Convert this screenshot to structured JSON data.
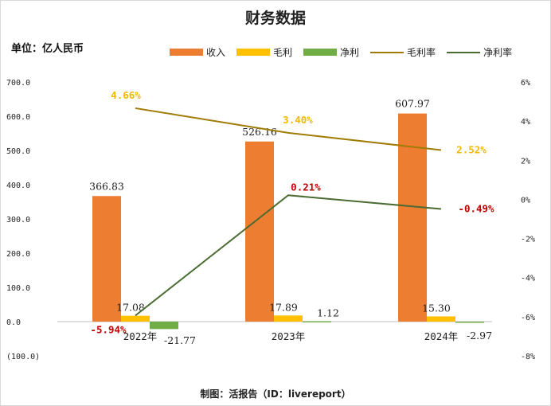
{
  "title": "财务数据",
  "unit_label": "单位：亿人民币",
  "source": "制图：活报告（ID：livereport）",
  "chart_data": {
    "type": "bar",
    "categories": [
      "2022年",
      "2023年",
      "2024年"
    ],
    "left_ticks": [
      "700.0",
      "600.0",
      "500.0",
      "400.0",
      "300.0",
      "200.0",
      "100.0",
      "0.0",
      "(100.0)"
    ],
    "right_ticks": [
      "6%",
      "4%",
      "2%",
      "0%",
      "-2%",
      "-4%",
      "-6%",
      "-8%"
    ],
    "ylim": [
      -100,
      700
    ],
    "y2lim": [
      -8,
      6
    ],
    "series": [
      {
        "name": "收入",
        "kind": "bar",
        "color": "#ED7D31",
        "values": [
          366.83,
          526.16,
          607.97
        ],
        "labels": [
          "366.83",
          "526.16",
          "607.97"
        ]
      },
      {
        "name": "毛利",
        "kind": "bar",
        "color": "#FFC000",
        "values": [
          17.08,
          17.89,
          15.3
        ],
        "labels": [
          "17.08",
          "17.89",
          "15.30"
        ]
      },
      {
        "name": "净利",
        "kind": "bar",
        "color": "#70AD47",
        "values": [
          -21.77,
          1.12,
          -2.97
        ],
        "labels": [
          "-21.77",
          "1.12",
          "-2.97"
        ]
      },
      {
        "name": "毛利率",
        "kind": "line",
        "axis": "right",
        "color": "#A07C06",
        "label_color": "#F5B800",
        "values": [
          4.66,
          3.4,
          2.52
        ],
        "labels": [
          "4.66%",
          "3.40%",
          "2.52%"
        ]
      },
      {
        "name": "净利率",
        "kind": "line",
        "axis": "right",
        "color": "#4A6B32",
        "label_color": "#C00000",
        "values": [
          -5.94,
          0.21,
          -0.49
        ],
        "labels": [
          "-5.94%",
          "0.21%",
          "-0.49%"
        ]
      }
    ]
  }
}
